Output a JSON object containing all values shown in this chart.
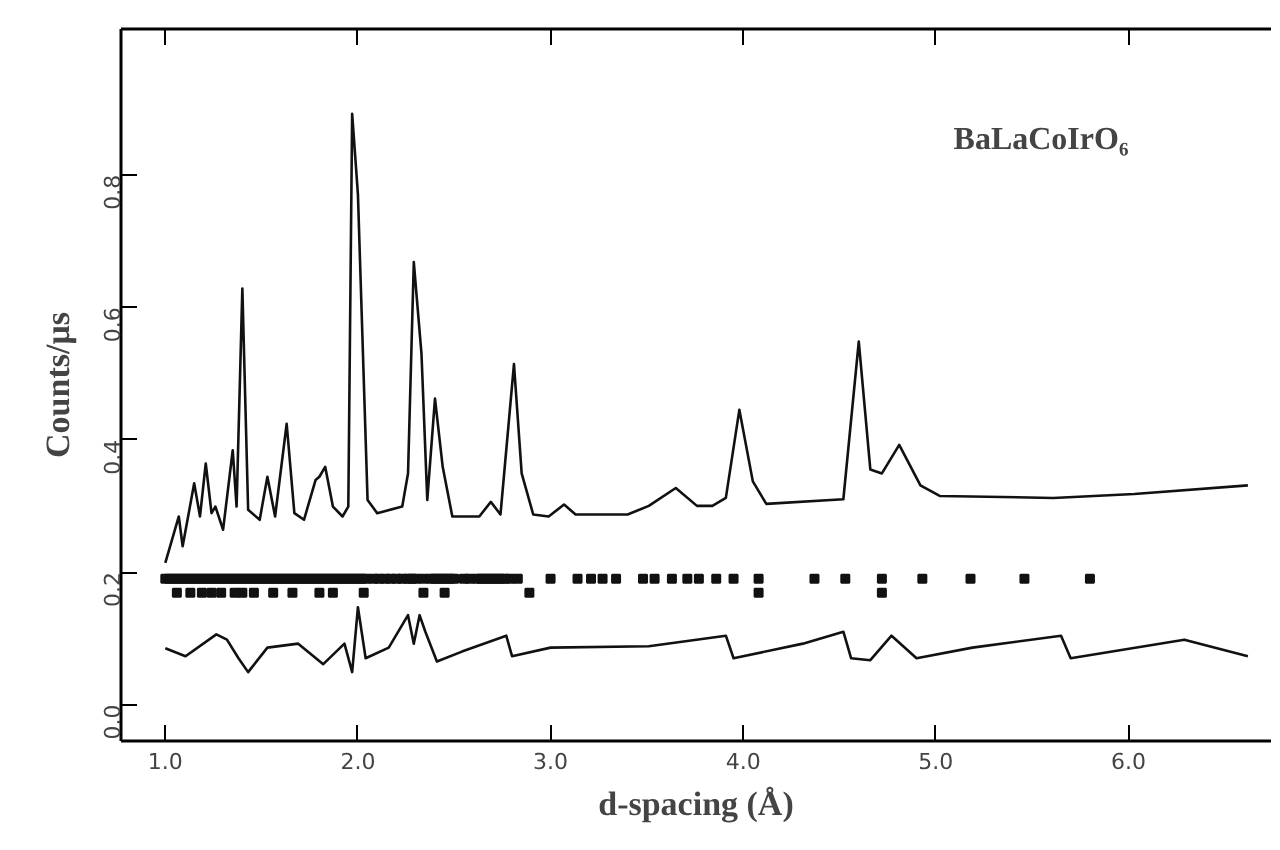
{
  "chart_data": {
    "type": "line",
    "xlabel": "d-spacing (Å)",
    "ylabel": "Counts/μs",
    "annotations": [
      "BaLaCoIrO₆"
    ],
    "xlim": [
      0.77,
      6.74
    ],
    "ylim": [
      -0.055,
      1.02
    ],
    "xticks": [
      {
        "value": 1,
        "label": "1.0"
      },
      {
        "value": 2,
        "label": "2.0"
      },
      {
        "value": 3,
        "label": "3.0"
      },
      {
        "value": 4,
        "label": "4.0"
      },
      {
        "value": 5,
        "label": "5.0"
      },
      {
        "value": 6,
        "label": "6.0"
      }
    ],
    "yticks": [
      {
        "value": 0,
        "label": "0.0"
      },
      {
        "value": 0.2,
        "label": "0.2"
      },
      {
        "value": 0.4,
        "label": "0.4"
      },
      {
        "value": 0.6,
        "label": "0.6"
      },
      {
        "value": 0.8,
        "label": "0.8"
      }
    ],
    "tick_labels": "xy",
    "series": [
      {
        "color": "#111111",
        "x": [
          1.0,
          1.07,
          1.09,
          1.15,
          1.18,
          1.21,
          1.24,
          1.26,
          1.3,
          1.35,
          1.37,
          1.4,
          1.43,
          1.49,
          1.53,
          1.57,
          1.63,
          1.67,
          1.72,
          1.78,
          1.8,
          1.83,
          1.87,
          1.92,
          1.95,
          1.97,
          2.0,
          2.05,
          2.1,
          2.23,
          2.26,
          2.29,
          2.33,
          2.36,
          2.4,
          2.44,
          2.49,
          2.63,
          2.69,
          2.74,
          2.81,
          2.85,
          2.91,
          2.99,
          3.07,
          3.13,
          3.4,
          3.51,
          3.65,
          3.76,
          3.84,
          3.91,
          3.98,
          4.05,
          4.12,
          4.52,
          4.6,
          4.66,
          4.72,
          4.81,
          4.92,
          5.02,
          5.61,
          6.03,
          6.62
        ],
        "values": [
          0.214,
          0.284,
          0.239,
          0.334,
          0.284,
          0.364,
          0.289,
          0.299,
          0.264,
          0.384,
          0.299,
          0.628,
          0.294,
          0.279,
          0.344,
          0.284,
          0.424,
          0.289,
          0.279,
          0.339,
          0.344,
          0.359,
          0.299,
          0.284,
          0.299,
          0.892,
          0.77,
          0.309,
          0.289,
          0.299,
          0.349,
          0.668,
          0.529,
          0.309,
          0.462,
          0.359,
          0.284,
          0.284,
          0.306,
          0.287,
          0.514,
          0.349,
          0.287,
          0.284,
          0.302,
          0.287,
          0.287,
          0.3,
          0.327,
          0.3,
          0.3,
          0.312,
          0.445,
          0.337,
          0.303,
          0.31,
          0.548,
          0.355,
          0.349,
          0.392,
          0.331,
          0.315,
          0.312,
          0.318,
          0.331
        ]
      },
      {
        "type": "scatter",
        "marker": "square",
        "color": "#111111",
        "x": [
          1.0,
          1.02,
          1.04,
          1.06,
          1.08,
          1.1,
          1.12,
          1.14,
          1.16,
          1.18,
          1.2,
          1.22,
          1.24,
          1.26,
          1.28,
          1.3,
          1.32,
          1.34,
          1.36,
          1.38,
          1.4,
          1.42,
          1.44,
          1.46,
          1.48,
          1.5,
          1.52,
          1.54,
          1.56,
          1.58,
          1.6,
          1.62,
          1.64,
          1.66,
          1.68,
          1.7,
          1.72,
          1.74,
          1.76,
          1.78,
          1.8,
          1.82,
          1.84,
          1.86,
          1.88,
          1.9,
          1.92,
          1.94,
          1.96,
          1.98,
          2.0,
          2.02,
          2.04,
          2.08,
          2.11,
          2.14,
          2.17,
          2.2,
          2.23,
          2.26,
          2.28,
          2.3,
          2.34,
          2.38,
          2.4,
          2.42,
          2.44,
          2.46,
          2.48,
          2.5,
          2.55,
          2.58,
          2.62,
          2.64,
          2.66,
          2.68,
          2.7,
          2.72,
          2.74,
          2.76,
          2.79,
          2.83,
          3.0,
          3.14,
          3.21,
          3.27,
          3.34,
          3.48,
          3.54,
          3.63,
          3.71,
          3.77,
          3.86,
          3.95,
          4.08,
          4.37,
          4.53,
          4.72,
          4.93,
          5.18,
          5.46,
          5.8
        ],
        "values": [
          0.19,
          0.19,
          0.19,
          0.19,
          0.19,
          0.19,
          0.19,
          0.19,
          0.19,
          0.19,
          0.19,
          0.19,
          0.19,
          0.19,
          0.19,
          0.19,
          0.19,
          0.19,
          0.19,
          0.19,
          0.19,
          0.19,
          0.19,
          0.19,
          0.19,
          0.19,
          0.19,
          0.19,
          0.19,
          0.19,
          0.19,
          0.19,
          0.19,
          0.19,
          0.19,
          0.19,
          0.19,
          0.19,
          0.19,
          0.19,
          0.19,
          0.19,
          0.19,
          0.19,
          0.19,
          0.19,
          0.19,
          0.19,
          0.19,
          0.19,
          0.19,
          0.19,
          0.19,
          0.19,
          0.19,
          0.19,
          0.19,
          0.19,
          0.19,
          0.19,
          0.19,
          0.19,
          0.19,
          0.19,
          0.19,
          0.19,
          0.19,
          0.19,
          0.19,
          0.19,
          0.19,
          0.19,
          0.19,
          0.19,
          0.19,
          0.19,
          0.19,
          0.19,
          0.19,
          0.19,
          0.19,
          0.19,
          0.19,
          0.19,
          0.19,
          0.19,
          0.19,
          0.19,
          0.19,
          0.19,
          0.19,
          0.19,
          0.19,
          0.19,
          0.19,
          0.19,
          0.19,
          0.19,
          0.19,
          0.19,
          0.19,
          0.19
        ]
      },
      {
        "type": "scatter",
        "marker": "square",
        "color": "#111111",
        "x": [
          1.06,
          1.13,
          1.19,
          1.24,
          1.29,
          1.36,
          1.4,
          1.46,
          1.56,
          1.66,
          1.8,
          1.87,
          2.03,
          2.34,
          2.45,
          2.89,
          4.08,
          4.72
        ],
        "values": [
          0.169,
          0.169,
          0.169,
          0.169,
          0.169,
          0.169,
          0.169,
          0.169,
          0.169,
          0.169,
          0.169,
          0.169,
          0.169,
          0.169,
          0.169,
          0.169,
          0.169,
          0.169
        ]
      },
      {
        "color": "#111111",
        "x": [
          1.0,
          1.105,
          1.265,
          1.32,
          1.38,
          1.43,
          1.53,
          1.69,
          1.82,
          1.93,
          1.97,
          2.0,
          2.04,
          2.16,
          2.26,
          2.29,
          2.32,
          2.35,
          2.41,
          2.54,
          2.77,
          2.8,
          3.0,
          3.51,
          3.91,
          3.95,
          4.31,
          4.52,
          4.56,
          4.66,
          4.77,
          4.9,
          5.19,
          5.65,
          5.7,
          6.29,
          6.62
        ],
        "values": [
          0.085,
          0.073,
          0.106,
          0.098,
          0.07,
          0.049,
          0.086,
          0.092,
          0.061,
          0.092,
          0.049,
          0.147,
          0.07,
          0.086,
          0.135,
          0.092,
          0.135,
          0.11,
          0.065,
          0.08,
          0.104,
          0.073,
          0.086,
          0.088,
          0.104,
          0.07,
          0.092,
          0.11,
          0.07,
          0.067,
          0.104,
          0.07,
          0.086,
          0.104,
          0.07,
          0.098,
          0.073
        ]
      }
    ]
  }
}
